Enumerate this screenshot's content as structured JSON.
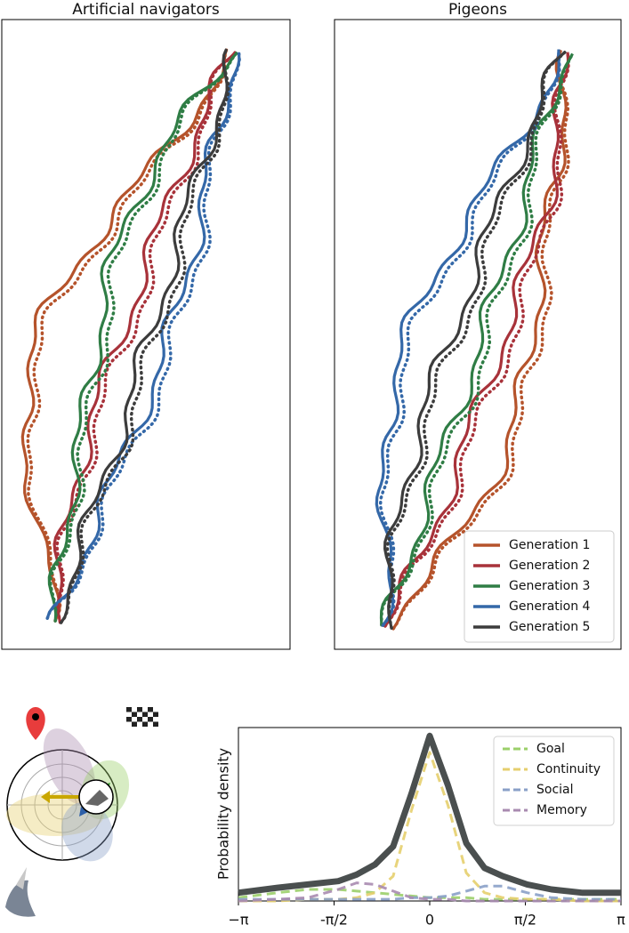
{
  "chart_data": [
    {
      "type": "trajectory",
      "title": "Artificial navigators",
      "series": [
        {
          "color": "#b5532b"
        },
        {
          "color": "#a8323a"
        },
        {
          "color": "#2f7d45"
        },
        {
          "color": "#3468a8"
        },
        {
          "color": "#3c3c3c"
        }
      ]
    },
    {
      "type": "trajectory",
      "title": "Pigeons",
      "legend": "lower right",
      "series": [
        {
          "name": "Generation 1",
          "color": "#b5532b"
        },
        {
          "name": "Generation 2",
          "color": "#a8323a"
        },
        {
          "name": "Generation 3",
          "color": "#2f7d45"
        },
        {
          "name": "Generation 4",
          "color": "#3468a8"
        },
        {
          "name": "Generation 5",
          "color": "#3c3c3c"
        }
      ]
    },
    {
      "type": "line",
      "ylabel": "Probability density",
      "legend": "upper right",
      "x": [
        -3.14,
        -2.5,
        -2,
        -1.5,
        -1.2,
        -0.9,
        -0.6,
        -0.3,
        0,
        0.3,
        0.6,
        0.9,
        1.2,
        1.6,
        2,
        2.5,
        3.14
      ],
      "xlim": [
        -3.1416,
        3.1416
      ],
      "xticks": [
        {
          "value": -3.1416,
          "label": "−π"
        },
        {
          "value": -1.5708,
          "label": "-π/2"
        },
        0,
        {
          "value": 1.5708,
          "label": "π/2"
        },
        {
          "value": 3.1416,
          "label": "π"
        }
      ],
      "ylim": [
        0,
        1.05
      ],
      "series": [
        {
          "name": "Goal",
          "color": "#9bcf6a",
          "dashed": true,
          "values": [
            0.02,
            0.05,
            0.07,
            0.07,
            0.06,
            0.05,
            0.04,
            0.03,
            0.02,
            0.02,
            0.02,
            0.01,
            0.01,
            0.01,
            0.01,
            0.01,
            0.01
          ]
        },
        {
          "name": "Continuity",
          "color": "#e5cf6e",
          "dashed": true,
          "values": [
            0,
            0,
            0.01,
            0.01,
            0.02,
            0.05,
            0.15,
            0.55,
            0.9,
            0.58,
            0.17,
            0.05,
            0.02,
            0.01,
            0.01,
            0,
            0
          ]
        },
        {
          "name": "Social",
          "color": "#8aa0c8",
          "dashed": true,
          "values": [
            0.01,
            0.01,
            0.01,
            0.01,
            0.01,
            0.01,
            0.01,
            0.02,
            0.02,
            0.03,
            0.06,
            0.09,
            0.09,
            0.05,
            0.02,
            0.01,
            0.01
          ]
        },
        {
          "name": "Memory",
          "color": "#a98bb0",
          "dashed": true,
          "values": [
            0,
            0.01,
            0.02,
            0.07,
            0.11,
            0.1,
            0.06,
            0.02,
            0.01,
            0.01,
            0,
            0,
            0,
            0,
            0,
            0,
            0
          ]
        },
        {
          "color": "#4a4f4f",
          "width": 7,
          "values": [
            0.05,
            0.08,
            0.1,
            0.12,
            0.16,
            0.22,
            0.33,
            0.65,
            1.0,
            0.7,
            0.35,
            0.2,
            0.15,
            0.1,
            0.07,
            0.05,
            0.05
          ]
        }
      ]
    }
  ]
}
